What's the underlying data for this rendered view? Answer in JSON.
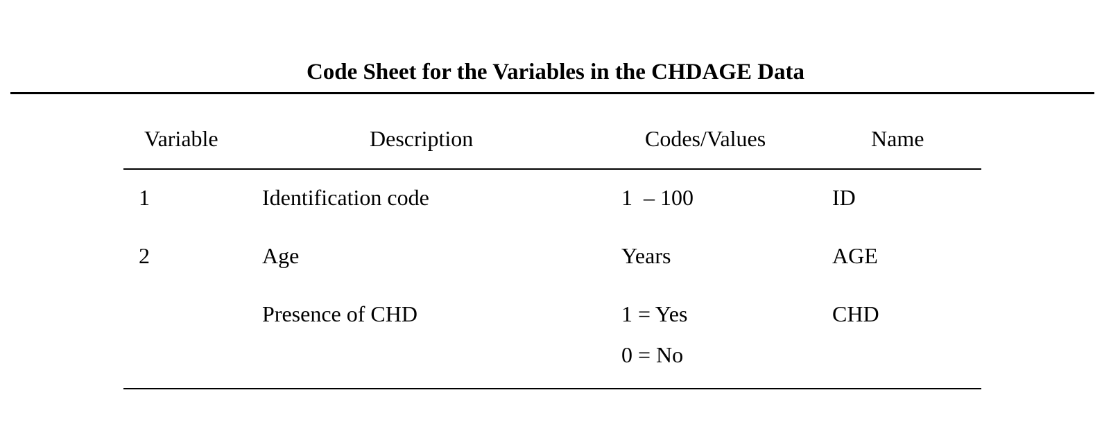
{
  "title": "Code Sheet for the Variables in the CHDAGE Data",
  "table": {
    "headers": {
      "variable": "Variable",
      "description": "Description",
      "codes": "Codes/Values",
      "name": "Name"
    },
    "rows": [
      {
        "variable": "1",
        "description": "Identification code",
        "codes": [
          "1  – 100"
        ],
        "name": "ID"
      },
      {
        "variable": "2",
        "description": "Age",
        "codes": [
          "Years"
        ],
        "name": "AGE"
      },
      {
        "variable": "",
        "description": "Presence of CHD",
        "codes": [
          "1 = Yes",
          "0 = No"
        ],
        "name": "CHD"
      }
    ]
  }
}
